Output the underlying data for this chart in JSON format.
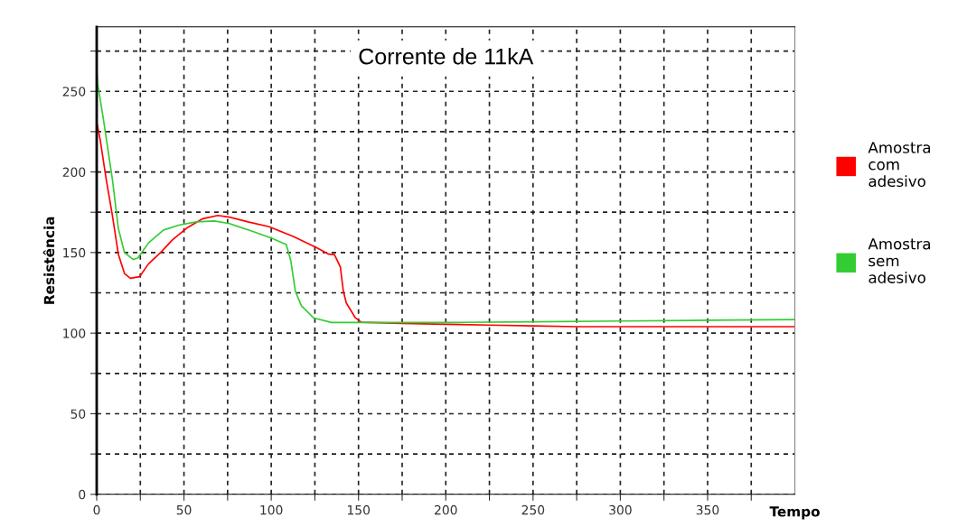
{
  "chart_data": {
    "type": "line",
    "title": "Corrente de 11kA",
    "xlabel": "Tempo",
    "ylabel": "Resistência",
    "xlim": [
      0,
      400
    ],
    "ylim": [
      0,
      290
    ],
    "xticks": [
      0,
      {
        "value": 25,
        "label": null
      },
      50,
      {
        "value": 75,
        "label": null
      },
      100,
      {
        "value": 125,
        "label": null
      },
      150,
      {
        "value": 175,
        "label": null
      },
      200,
      {
        "value": 225,
        "label": null
      },
      250,
      {
        "value": 275,
        "label": null
      },
      300,
      {
        "value": 325,
        "label": null
      },
      350,
      {
        "value": 375,
        "label": null
      }
    ],
    "yticks": [
      0,
      {
        "value": 25,
        "label": null
      },
      50,
      {
        "value": 75,
        "label": null
      },
      100,
      {
        "value": 125,
        "label": null
      },
      150,
      {
        "value": 175,
        "label": null
      },
      200,
      {
        "value": 225,
        "label": null
      },
      250,
      {
        "value": 275,
        "label": null
      }
    ],
    "grid": true,
    "legend": "right",
    "marker": "none",
    "line_style": "solid",
    "series": [
      {
        "name": "Amostra\ncom\nadesivo",
        "color": "#ff0000",
        "x": [
          0,
          2,
          5.5,
          9,
          12.4,
          15.9,
          19.3,
          24.5,
          29.7,
          36.6,
          43.5,
          52,
          60.8,
          69.4,
          76,
          86.7,
          98.8,
          112.6,
          126,
          133,
          136.2,
          139.6,
          141.3,
          143,
          148.2,
          151.6,
          175,
          200,
          225,
          250,
          275,
          300,
          325,
          350,
          375,
          400
        ],
        "values": [
          231,
          220,
          195,
          173,
          149,
          137,
          134,
          135,
          143,
          150,
          158,
          165.5,
          171,
          173,
          172,
          169,
          166,
          160,
          153,
          149,
          148.7,
          141,
          126,
          118.7,
          109.5,
          106.7,
          106,
          105.5,
          105,
          104.5,
          104,
          104,
          104,
          104,
          104,
          104
        ]
      },
      {
        "name": "Amostra\nsem\nadesivo",
        "color": "#33cc33",
        "x": [
          0,
          0.5,
          3.8,
          9,
          12.4,
          15.9,
          21,
          23.5,
          29.7,
          38.3,
          47,
          57,
          67.5,
          76,
          88,
          100,
          108.6,
          111.2,
          113.8,
          117.3,
          124.2,
          134.5,
          175,
          200,
          250,
          300,
          350,
          400
        ],
        "values": [
          265,
          255,
          233,
          195.4,
          165,
          150,
          145.7,
          146.6,
          156,
          164,
          167,
          169,
          169.6,
          168,
          163.6,
          159,
          155,
          145,
          126,
          117,
          109.5,
          106.6,
          106.6,
          106.6,
          107,
          107.5,
          108,
          108.4
        ]
      }
    ]
  }
}
